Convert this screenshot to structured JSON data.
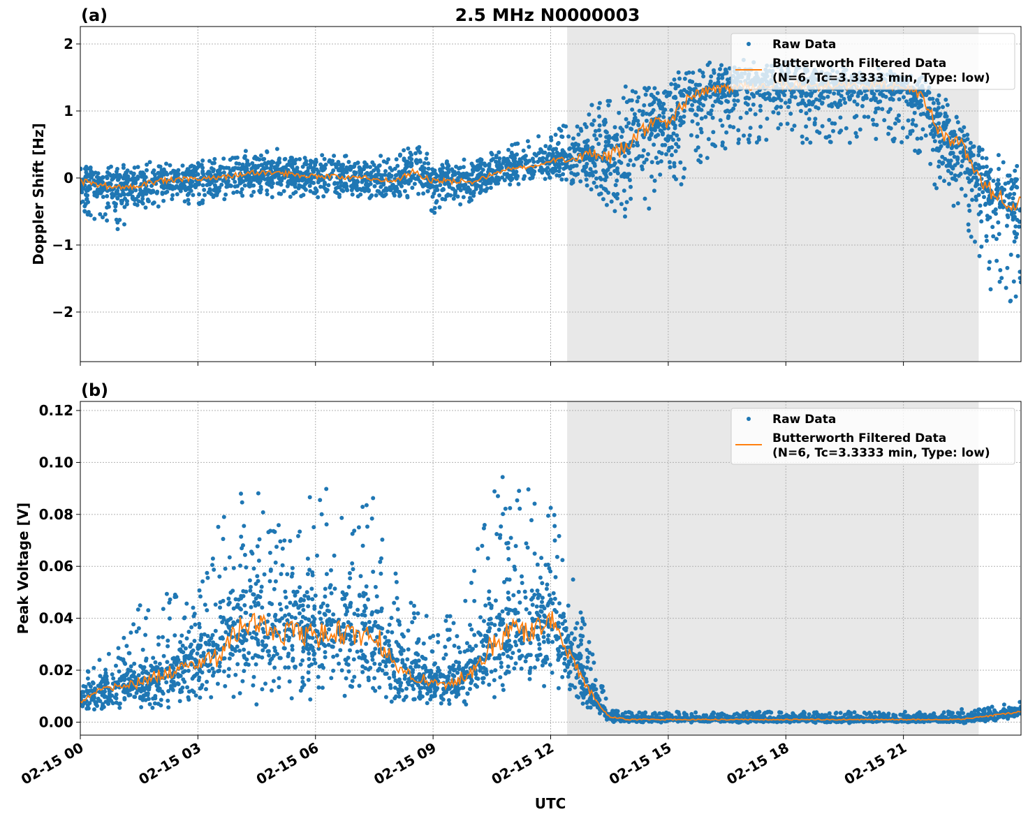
{
  "title": "2.5 MHz N0000003",
  "xlabel": "UTC",
  "x_ticks": [
    "02-15 00",
    "02-15 03",
    "02-15 06",
    "02-15 09",
    "02-15 12",
    "02-15 15",
    "02-15 18",
    "02-15 21"
  ],
  "x_tick_hours": [
    0,
    3,
    6,
    9,
    12,
    15,
    18,
    21
  ],
  "x_range_hours": [
    0,
    24
  ],
  "shaded_region_hours": [
    12.42,
    22.92
  ],
  "colors": {
    "raw": "#1f77b4",
    "filtered": "#ff7f0e",
    "shade": "#e8e8e8"
  },
  "legend": {
    "raw": "Raw Data",
    "filtered_line1": "Butterworth Filtered Data",
    "filtered_line2": "(N=6, Tc=3.3333 min, Type: low)",
    "placement": "top-right"
  },
  "chart_data": [
    {
      "type": "scatter+line",
      "panel_label": "(a)",
      "ylabel": "Doppler Shift [Hz]",
      "ylim": [
        -2.74,
        2.26
      ],
      "y_ticks": [
        2,
        1,
        0,
        -1,
        -2
      ],
      "y_tick_labels": [
        "2",
        "1",
        "0",
        "−1",
        "−2"
      ],
      "grid": true,
      "x_hours": [
        0,
        0.5,
        1,
        1.5,
        2,
        2.5,
        3,
        3.5,
        4,
        4.5,
        5,
        5.5,
        6,
        6.5,
        7,
        7.5,
        8,
        8.5,
        9,
        9.5,
        10,
        10.5,
        11,
        11.5,
        12,
        12.5,
        13,
        13.5,
        14,
        14.5,
        15,
        15.5,
        16,
        16.5,
        17,
        17.5,
        18,
        18.5,
        19,
        19.5,
        20,
        20.5,
        21,
        21.5,
        22,
        22.5,
        23,
        23.5,
        24
      ],
      "filtered": [
        -0.05,
        -0.1,
        -0.15,
        -0.1,
        -0.05,
        -0.02,
        -0.02,
        0,
        0.05,
        0.08,
        0.08,
        0.05,
        0.03,
        0.02,
        0,
        0,
        -0.05,
        0.1,
        -0.05,
        -0.05,
        -0.05,
        0.05,
        0.15,
        0.15,
        0.25,
        0.3,
        0.35,
        0.3,
        0.5,
        0.8,
        0.8,
        1.2,
        1.3,
        1.35,
        1.38,
        1.38,
        1.38,
        1.38,
        1.38,
        1.38,
        1.38,
        1.38,
        1.38,
        1.2,
        0.6,
        0.5,
        -0.1,
        -0.3,
        -0.4
      ],
      "raw_low": [
        -0.6,
        -0.7,
        -0.8,
        -0.5,
        -0.45,
        -0.4,
        -0.4,
        -0.35,
        -0.3,
        -0.3,
        -0.3,
        -0.3,
        -0.3,
        -0.3,
        -0.3,
        -0.3,
        -0.35,
        -0.3,
        -0.6,
        -0.5,
        -0.4,
        -0.2,
        -0.1,
        -0.05,
        0,
        -0.1,
        -0.2,
        -0.5,
        -0.6,
        -0.5,
        -0.3,
        0,
        0.3,
        0.4,
        0.5,
        0.5,
        0.5,
        0.5,
        0.5,
        0.5,
        0.5,
        0.5,
        0.5,
        0.3,
        -0.4,
        -0.5,
        -1.5,
        -2.0,
        -1.8
      ],
      "raw_high": [
        0.2,
        0.15,
        0.2,
        0.25,
        0.3,
        0.25,
        0.25,
        0.3,
        0.35,
        0.4,
        0.4,
        0.35,
        0.35,
        0.35,
        0.3,
        0.35,
        0.3,
        0.6,
        0.2,
        0.3,
        0.3,
        0.4,
        0.5,
        0.6,
        0.7,
        0.9,
        1.1,
        1.3,
        1.4,
        1.45,
        1.5,
        1.6,
        1.65,
        1.7,
        1.7,
        1.7,
        1.7,
        1.7,
        1.7,
        1.65,
        1.6,
        1.6,
        1.55,
        1.5,
        1.4,
        0.9,
        0.4,
        0.3,
        0.2
      ]
    },
    {
      "type": "scatter+line",
      "panel_label": "(b)",
      "ylabel": "Peak Voltage [V]",
      "ylim": [
        -0.005,
        0.1235
      ],
      "y_ticks": [
        0.12,
        0.1,
        0.08,
        0.06,
        0.04,
        0.02,
        0.0
      ],
      "y_tick_labels": [
        "0.12",
        "0.10",
        "0.08",
        "0.06",
        "0.04",
        "0.02",
        "0.00"
      ],
      "grid": true,
      "x_hours": [
        0,
        0.5,
        1,
        1.5,
        2,
        2.5,
        3,
        3.5,
        4,
        4.5,
        5,
        5.5,
        6,
        6.5,
        7,
        7.5,
        8,
        8.5,
        9,
        9.5,
        10,
        10.5,
        11,
        11.5,
        12,
        12.5,
        13,
        13.5,
        14,
        14.5,
        15,
        15.5,
        16,
        16.5,
        17,
        17.5,
        18,
        18.5,
        19,
        19.5,
        20,
        20.5,
        21,
        21.5,
        22,
        22.5,
        23,
        23.5,
        24
      ],
      "filtered": [
        0.008,
        0.012,
        0.014,
        0.015,
        0.018,
        0.02,
        0.022,
        0.025,
        0.035,
        0.04,
        0.033,
        0.035,
        0.033,
        0.035,
        0.033,
        0.035,
        0.022,
        0.018,
        0.015,
        0.015,
        0.02,
        0.03,
        0.035,
        0.035,
        0.04,
        0.025,
        0.012,
        0.002,
        0.001,
        0.001,
        0.001,
        0.001,
        0.001,
        0.001,
        0.001,
        0.001,
        0.001,
        0.001,
        0.001,
        0.001,
        0.001,
        0.001,
        0.001,
        0.001,
        0.001,
        0.001,
        0.002,
        0.003,
        0.004
      ],
      "raw_low": [
        0.003,
        0.005,
        0.005,
        0.006,
        0.007,
        0.008,
        0.008,
        0.01,
        0.012,
        0.012,
        0.012,
        0.012,
        0.012,
        0.012,
        0.012,
        0.012,
        0.009,
        0.008,
        0.007,
        0.007,
        0.01,
        0.012,
        0.014,
        0.015,
        0.018,
        0.012,
        0.005,
        0.0,
        0.0,
        0.0,
        0.0,
        0.0,
        0.0,
        0.0,
        0.0,
        0.0,
        0.0,
        0.0,
        0.0,
        0.0,
        0.0,
        0.0,
        0.0,
        0.0,
        0.0,
        0.0,
        0.0,
        0.001,
        0.002
      ],
      "raw_high": [
        0.018,
        0.025,
        0.03,
        0.045,
        0.05,
        0.05,
        0.05,
        0.075,
        0.09,
        0.1,
        0.08,
        0.085,
        0.09,
        0.09,
        0.08,
        0.1,
        0.06,
        0.045,
        0.04,
        0.045,
        0.06,
        0.09,
        0.1,
        0.09,
        0.09,
        0.06,
        0.03,
        0.005,
        0.004,
        0.004,
        0.004,
        0.004,
        0.004,
        0.004,
        0.004,
        0.004,
        0.004,
        0.004,
        0.004,
        0.004,
        0.004,
        0.004,
        0.004,
        0.004,
        0.004,
        0.005,
        0.005,
        0.007,
        0.008
      ]
    }
  ]
}
